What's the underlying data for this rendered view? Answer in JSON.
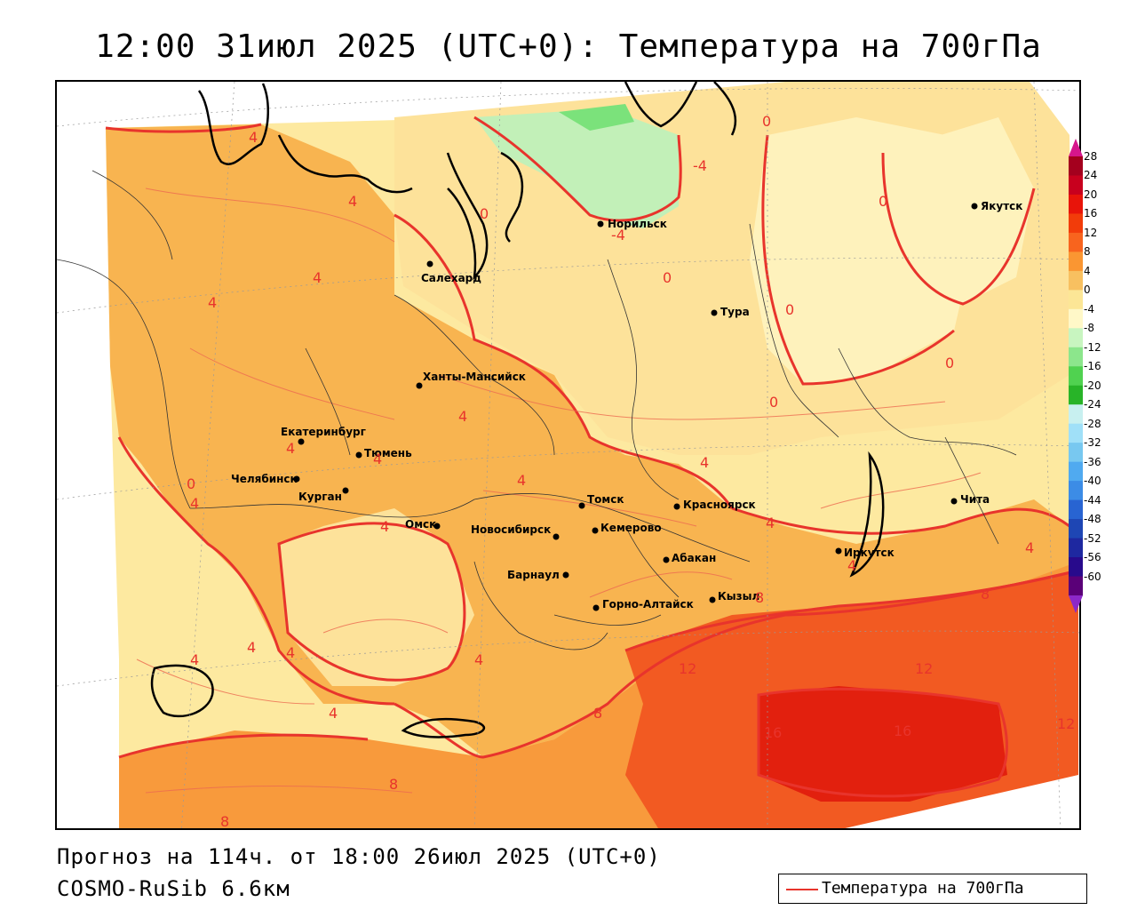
{
  "title": "12:00 31июл 2025 (UTC+0): Температура на 700гПа",
  "forecast_line": "Прогноз на 114ч. от 18:00 26июл 2025 (UTC+0)",
  "model_line": "COSMO-RuSib 6.6км",
  "legend": {
    "label": "Температура на 700гПа",
    "line_color": "#e8342c"
  },
  "colorbar": {
    "labels": [
      "28",
      "24",
      "20",
      "16",
      "12",
      "8",
      "4",
      "0",
      "-4",
      "-8",
      "-12",
      "-16",
      "-20",
      "-24",
      "-28",
      "-32",
      "-36",
      "-40",
      "-44",
      "-48",
      "-52",
      "-56",
      "-60"
    ],
    "colors": [
      "#a4001e",
      "#c8001e",
      "#e8140a",
      "#f23c0a",
      "#f8641e",
      "#fa9632",
      "#f8c060",
      "#fce696",
      "#fff8c8",
      "#c8f5c0",
      "#8ce68c",
      "#50d250",
      "#28b428",
      "#c8f0f0",
      "#a0e0f8",
      "#78c8f0",
      "#50aaf0",
      "#3c8ce6",
      "#2864d2",
      "#1e46b4",
      "#1e28a0",
      "#280a8c",
      "#5a0078"
    ],
    "top_arrow_color": "#d6168c",
    "bottom_arrow_color": "#8c28c8"
  },
  "cities": [
    {
      "name": "Якутск"
    },
    {
      "name": "Норильск"
    },
    {
      "name": "Салехард"
    },
    {
      "name": "Тура"
    },
    {
      "name": "Ханты-Мансийск"
    },
    {
      "name": "Екатеринбург"
    },
    {
      "name": "Тюмень"
    },
    {
      "name": "Челябинск"
    },
    {
      "name": "Курган"
    },
    {
      "name": "Омск"
    },
    {
      "name": "Новосибирск"
    },
    {
      "name": "Томск"
    },
    {
      "name": "Кемерово"
    },
    {
      "name": "Красноярск"
    },
    {
      "name": "Абакан"
    },
    {
      "name": "Барнаул"
    },
    {
      "name": "Горно-Алтайск"
    },
    {
      "name": "Кызыл"
    },
    {
      "name": "Иркутск"
    },
    {
      "name": "Чита"
    }
  ],
  "isoline_labels": [
    "4",
    "4",
    "4",
    "4",
    "0",
    "4",
    "0",
    "-4",
    "-4",
    "0",
    "0",
    "0",
    "0",
    "0",
    "4",
    "4",
    "4",
    "4",
    "0",
    "4",
    "4",
    "4",
    "4",
    "4",
    "4",
    "4",
    "4",
    "4",
    "8",
    "8",
    "8",
    "12",
    "12",
    "12",
    "16",
    "16",
    "8",
    "8",
    "4",
    "4"
  ]
}
